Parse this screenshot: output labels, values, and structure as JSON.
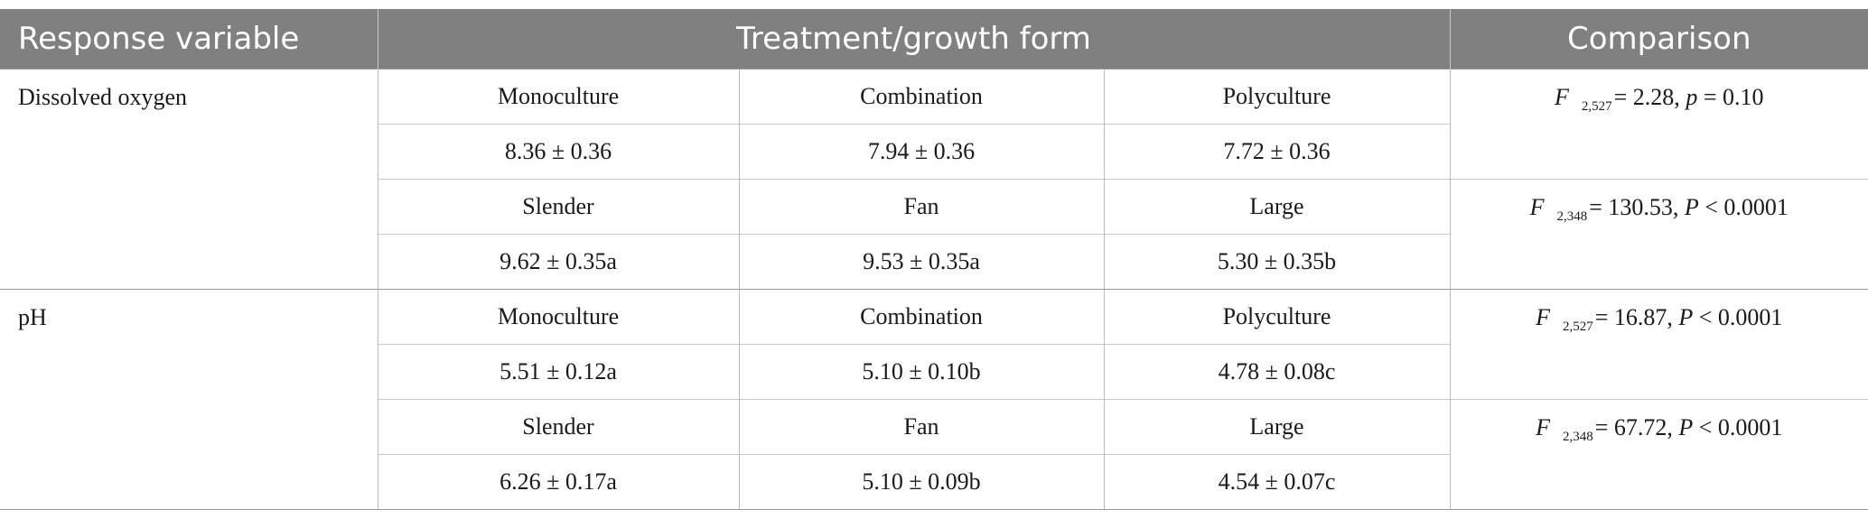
{
  "header": {
    "col1": "Response variable",
    "col2": "Treatment/growth form",
    "col3": "Comparison"
  },
  "groups": [
    {
      "variable": "Dissolved oxygen",
      "blocks": [
        {
          "labels": [
            "Monoculture",
            "Combination",
            "Polyculture"
          ],
          "values": [
            "8.36 ± 0.36",
            "7.94 ± 0.36",
            "7.72 ± 0.36"
          ],
          "stat": {
            "f": "F",
            "df": "2,527",
            "rest": "= 2.28, ",
            "p": "p",
            "ptail": " = 0.10"
          }
        },
        {
          "labels": [
            "Slender",
            "Fan",
            "Large"
          ],
          "values": [
            "9.62 ± 0.35a",
            "9.53 ± 0.35a",
            "5.30 ± 0.35b"
          ],
          "stat": {
            "f": "F",
            "df": "2,348",
            "rest": "= 130.53, ",
            "p": "P",
            "ptail": " < 0.0001"
          }
        }
      ]
    },
    {
      "variable": "pH",
      "blocks": [
        {
          "labels": [
            "Monoculture",
            "Combination",
            "Polyculture"
          ],
          "values": [
            "5.51 ± 0.12a",
            "5.10 ± 0.10b",
            "4.78 ± 0.08c"
          ],
          "stat": {
            "f": "F",
            "df": "2,527",
            "rest": "= 16.87, ",
            "p": "P",
            "ptail": " < 0.0001"
          }
        },
        {
          "labels": [
            "Slender",
            "Fan",
            "Large"
          ],
          "values": [
            "6.26 ± 0.17a",
            "5.10 ± 0.09b",
            "4.54 ± 0.07c"
          ],
          "stat": {
            "f": "F",
            "df": "2,348",
            "rest": "= 67.72, ",
            "p": "P",
            "ptail": " < 0.0001"
          }
        }
      ]
    }
  ]
}
